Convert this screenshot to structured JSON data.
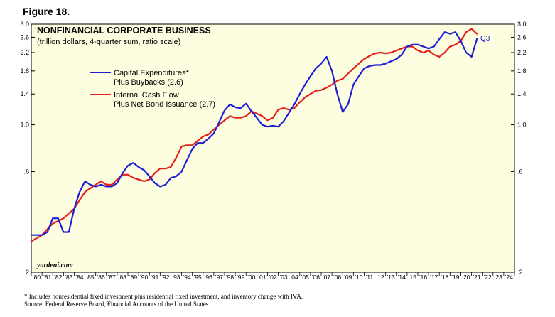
{
  "figure_label": "Figure 18.",
  "colors": {
    "panel_background": "#fdfde0",
    "series_capex": "#1e1ed6",
    "series_cash_flow": "#e3201b"
  },
  "chart_data": {
    "type": "line",
    "title": "NONFINANCIAL CORPORATE BUSINESS",
    "subtitle": "(trillion dollars, 4-quarter sum, ratio scale)",
    "y_scale": "log",
    "ylim": [
      0.2,
      3.0
    ],
    "y_ticks": [
      "3.0",
      "2.6",
      "2.2",
      "1.8",
      "1.4",
      "1.0",
      ".6",
      ".2"
    ],
    "y_tick_values": [
      3.0,
      2.6,
      2.2,
      1.8,
      1.4,
      1.0,
      0.6,
      0.2
    ],
    "x_range": [
      1980,
      2025
    ],
    "x_tick_labels": [
      "'80",
      "'81",
      "'82",
      "'83",
      "'84",
      "'85",
      "'86",
      "'87",
      "'88",
      "'89",
      "'90",
      "'91",
      "'92",
      "'93",
      "'94",
      "'95",
      "'96",
      "'97",
      "'98",
      "'99",
      "'00",
      "'01",
      "'02",
      "'03",
      "'04",
      "'05",
      "'06",
      "'07",
      "'08",
      "'09",
      "'10",
      "'11",
      "'12",
      "'13",
      "'14",
      "'15",
      "'16",
      "'17",
      "'18",
      "'19",
      "'20",
      "'21",
      "'22",
      "'23",
      "'24"
    ],
    "x_tick_years": [
      1980,
      1981,
      1982,
      1983,
      1984,
      1985,
      1986,
      1987,
      1988,
      1989,
      1990,
      1991,
      1992,
      1993,
      1994,
      1995,
      1996,
      1997,
      1998,
      1999,
      2000,
      2001,
      2002,
      2003,
      2004,
      2005,
      2006,
      2007,
      2008,
      2009,
      2010,
      2011,
      2012,
      2013,
      2014,
      2015,
      2016,
      2017,
      2018,
      2019,
      2020,
      2021,
      2022,
      2023,
      2024
    ],
    "legend_placement": "upper-left",
    "series": [
      {
        "name": "Capital Expenditures* Plus Buybacks (2.6)",
        "legend_lines": [
          "Capital Expenditures*",
          "Plus Buybacks (2.6)"
        ],
        "color": "#1e1ed6",
        "x": [
          1980.0,
          1980.5,
          1981.0,
          1981.5,
          1982.0,
          1982.5,
          1983.0,
          1983.5,
          1984.0,
          1984.5,
          1985.0,
          1985.5,
          1986.0,
          1986.5,
          1987.0,
          1987.5,
          1988.0,
          1988.5,
          1989.0,
          1989.5,
          1990.0,
          1990.5,
          1991.0,
          1991.5,
          1992.0,
          1992.5,
          1993.0,
          1993.5,
          1994.0,
          1994.5,
          1995.0,
          1995.5,
          1996.0,
          1996.5,
          1997.0,
          1997.5,
          1998.0,
          1998.5,
          1999.0,
          1999.5,
          2000.0,
          2000.5,
          2001.0,
          2001.5,
          2002.0,
          2002.5,
          2003.0,
          2003.5,
          2004.0,
          2004.5,
          2005.0,
          2005.5,
          2006.0,
          2006.5,
          2007.0,
          2007.5,
          2008.0,
          2008.5,
          2009.0,
          2009.5,
          2010.0,
          2010.5,
          2011.0,
          2011.5,
          2012.0,
          2012.5,
          2013.0,
          2013.5,
          2014.0,
          2014.5,
          2015.0,
          2015.5,
          2016.0,
          2016.5,
          2017.0,
          2017.5,
          2018.0,
          2018.5,
          2019.0,
          2019.5,
          2020.0,
          2020.5,
          2021.0,
          2021.5
        ],
        "values": [
          0.3,
          0.3,
          0.3,
          0.31,
          0.36,
          0.36,
          0.31,
          0.31,
          0.4,
          0.48,
          0.54,
          0.52,
          0.51,
          0.52,
          0.51,
          0.51,
          0.53,
          0.59,
          0.64,
          0.66,
          0.63,
          0.61,
          0.57,
          0.53,
          0.51,
          0.52,
          0.56,
          0.57,
          0.6,
          0.68,
          0.77,
          0.82,
          0.82,
          0.86,
          0.91,
          1.03,
          1.17,
          1.25,
          1.21,
          1.2,
          1.26,
          1.16,
          1.08,
          1.0,
          0.98,
          0.99,
          0.98,
          1.04,
          1.14,
          1.25,
          1.4,
          1.55,
          1.7,
          1.85,
          1.95,
          2.1,
          1.8,
          1.4,
          1.15,
          1.25,
          1.55,
          1.7,
          1.85,
          1.9,
          1.92,
          1.92,
          1.95,
          2.0,
          2.05,
          2.15,
          2.35,
          2.4,
          2.4,
          2.35,
          2.3,
          2.35,
          2.55,
          2.75,
          2.7,
          2.75,
          2.5,
          2.2,
          2.1,
          2.55
        ]
      },
      {
        "name": "Internal Cash Flow Plus Net Bond Issuance (2.7)",
        "legend_lines": [
          "Internal Cash Flow",
          "Plus Net Bond Issuance (2.7)"
        ],
        "color": "#e3201b",
        "x": [
          1980.0,
          1980.5,
          1981.0,
          1981.5,
          1982.0,
          1982.5,
          1983.0,
          1983.5,
          1984.0,
          1984.5,
          1985.0,
          1985.5,
          1986.0,
          1986.5,
          1987.0,
          1987.5,
          1988.0,
          1988.5,
          1989.0,
          1989.5,
          1990.0,
          1990.5,
          1991.0,
          1991.5,
          1992.0,
          1992.5,
          1993.0,
          1993.5,
          1994.0,
          1994.5,
          1995.0,
          1995.5,
          1996.0,
          1996.5,
          1997.0,
          1997.5,
          1998.0,
          1998.5,
          1999.0,
          1999.5,
          2000.0,
          2000.5,
          2001.0,
          2001.5,
          2002.0,
          2002.5,
          2003.0,
          2003.5,
          2004.0,
          2004.5,
          2005.0,
          2005.5,
          2006.0,
          2006.5,
          2007.0,
          2007.5,
          2008.0,
          2008.5,
          2009.0,
          2009.5,
          2010.0,
          2010.5,
          2011.0,
          2011.5,
          2012.0,
          2012.5,
          2013.0,
          2013.5,
          2014.0,
          2014.5,
          2015.0,
          2015.5,
          2016.0,
          2016.5,
          2017.0,
          2017.5,
          2018.0,
          2018.5,
          2019.0,
          2019.5,
          2020.0,
          2020.5,
          2021.0,
          2021.5
        ],
        "values": [
          0.28,
          0.29,
          0.3,
          0.32,
          0.34,
          0.35,
          0.36,
          0.38,
          0.4,
          0.44,
          0.48,
          0.5,
          0.52,
          0.54,
          0.52,
          0.52,
          0.55,
          0.58,
          0.58,
          0.56,
          0.55,
          0.54,
          0.55,
          0.59,
          0.62,
          0.62,
          0.63,
          0.7,
          0.79,
          0.8,
          0.8,
          0.84,
          0.88,
          0.9,
          0.95,
          1.0,
          1.05,
          1.1,
          1.08,
          1.08,
          1.1,
          1.16,
          1.13,
          1.1,
          1.05,
          1.08,
          1.18,
          1.2,
          1.18,
          1.2,
          1.28,
          1.35,
          1.4,
          1.45,
          1.46,
          1.5,
          1.55,
          1.62,
          1.65,
          1.75,
          1.85,
          1.95,
          2.05,
          2.12,
          2.18,
          2.2,
          2.18,
          2.2,
          2.25,
          2.3,
          2.35,
          2.35,
          2.25,
          2.2,
          2.25,
          2.15,
          2.1,
          2.2,
          2.35,
          2.4,
          2.5,
          2.75,
          2.85,
          2.7
        ]
      }
    ],
    "annotations": [
      "Q3"
    ],
    "source_tag": "yardeni.com"
  },
  "footnotes": {
    "line1": "*  Includes nonresidential fixed investment plus residential fixed investment, and inventory change with IVA.",
    "line2": "Source: Federal Reserve Board, Financial Accounts of the United States."
  }
}
